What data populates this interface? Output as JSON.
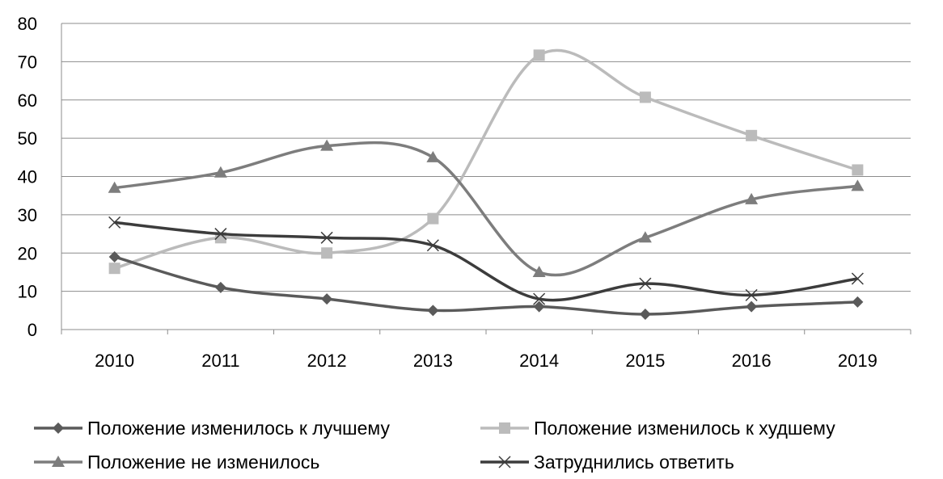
{
  "chart_data": {
    "type": "line",
    "title": "",
    "xlabel": "",
    "ylabel": "",
    "categories": [
      "2010",
      "2011",
      "2012",
      "2013",
      "2014",
      "2015",
      "2016",
      "2019"
    ],
    "ylim": [
      0,
      80
    ],
    "yticks": [
      0,
      10,
      20,
      30,
      40,
      50,
      60,
      70,
      80
    ],
    "grid": "horizontal",
    "smooth": true,
    "legend_position": "bottom",
    "series": [
      {
        "name": "Положение изменилось к лучшему",
        "values": [
          19,
          11,
          8,
          5,
          6,
          4,
          6,
          7.2
        ],
        "color": "#5a5a5a",
        "marker": "diamond"
      },
      {
        "name": "Положение изменилось к худшему",
        "values": [
          16,
          24,
          20,
          29,
          71.7,
          60.7,
          50.7,
          41.7
        ],
        "color": "#bbbbbb",
        "marker": "square"
      },
      {
        "name": "Положение не изменилось",
        "values": [
          37,
          41,
          48,
          45,
          15,
          24,
          34,
          37.5
        ],
        "color": "#7d7d7d",
        "marker": "triangle"
      },
      {
        "name": "Затруднились ответить",
        "values": [
          28,
          25,
          24,
          22,
          8,
          12,
          9,
          13.3
        ],
        "color": "#3c3c3c",
        "marker": "x"
      }
    ]
  }
}
